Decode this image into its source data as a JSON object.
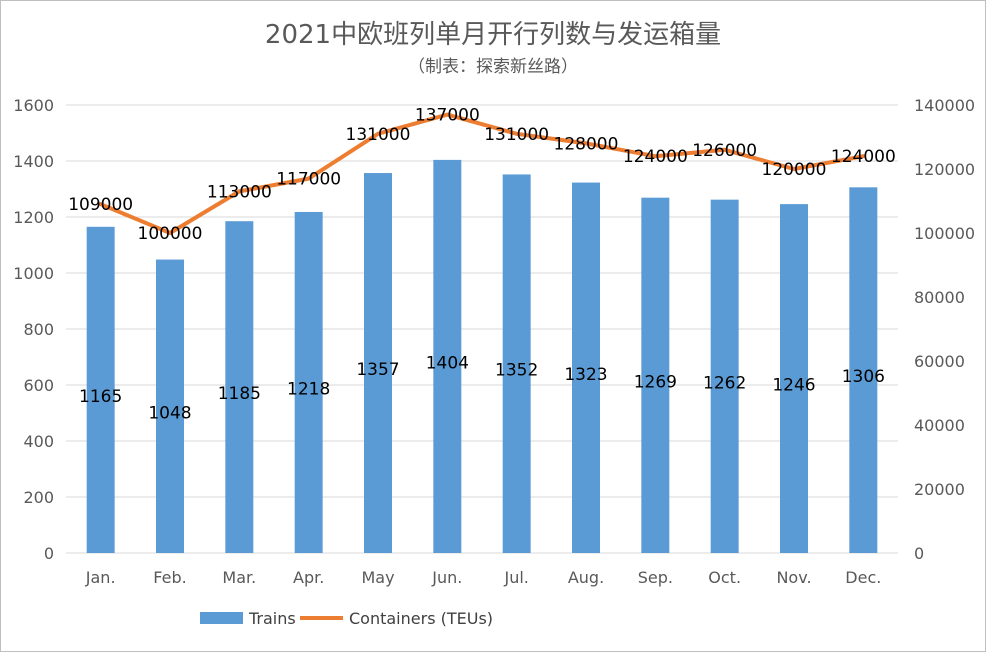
{
  "chart_data": {
    "type": "bar",
    "title": "2021中欧班列单月开行列数与发运箱量",
    "subtitle": "（制表：探索新丝路）",
    "categories": [
      "Jan.",
      "Feb.",
      "Mar.",
      "Apr.",
      "May",
      "Jun.",
      "Jul.",
      "Aug.",
      "Sep.",
      "Oct.",
      "Nov.",
      "Dec."
    ],
    "series": [
      {
        "name": "Trains",
        "type": "bar",
        "axis": "left",
        "color": "#5b9bd5",
        "values": [
          1165,
          1048,
          1185,
          1218,
          1357,
          1404,
          1352,
          1323,
          1269,
          1262,
          1246,
          1306
        ]
      },
      {
        "name": "Containers (TEUs)",
        "type": "line",
        "axis": "right",
        "color": "#ed7d31",
        "values": [
          109000,
          100000,
          113000,
          117000,
          131000,
          137000,
          131000,
          128000,
          124000,
          126000,
          120000,
          124000
        ]
      }
    ],
    "y_left": {
      "min": 0,
      "max": 1600,
      "ticks": [
        0,
        200,
        400,
        600,
        800,
        1000,
        1200,
        1400,
        1600
      ]
    },
    "y_right": {
      "min": 0,
      "max": 140000,
      "ticks": [
        0,
        20000,
        40000,
        60000,
        80000,
        100000,
        120000,
        140000
      ]
    },
    "grid": true,
    "legend_position": "bottom-left"
  }
}
